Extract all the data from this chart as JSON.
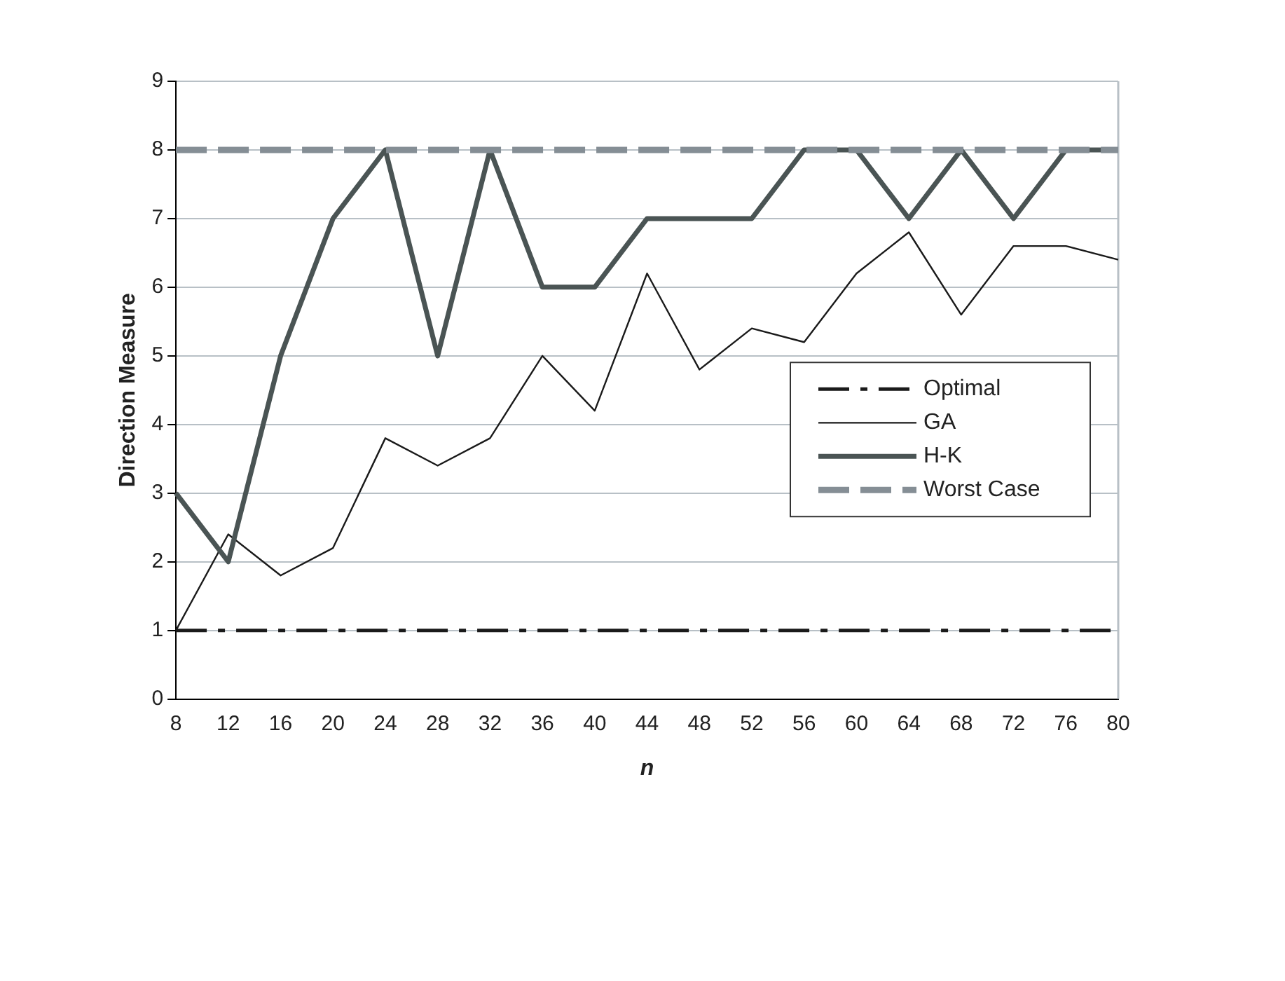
{
  "chart_data": {
    "type": "line",
    "xlabel": "n",
    "ylabel": "Direction Measure",
    "categories": [
      "8",
      "12",
      "16",
      "20",
      "24",
      "28",
      "32",
      "36",
      "40",
      "44",
      "48",
      "52",
      "56",
      "60",
      "64",
      "68",
      "72",
      "76",
      "80"
    ],
    "series": [
      {
        "name": "Optimal",
        "color": "#1a1a1a",
        "line_style": "dashed",
        "values": [
          1,
          1,
          1,
          1,
          1,
          1,
          1,
          1,
          1,
          1,
          1,
          1,
          1,
          1,
          1,
          1,
          1,
          1,
          1
        ]
      },
      {
        "name": "GA",
        "color": "#1a1a1a",
        "line_style": "solid",
        "values": [
          1,
          2.4,
          1.8,
          2.2,
          3.8,
          3.4,
          3.8,
          5,
          4.2,
          6.2,
          4.8,
          5.4,
          5.2,
          6.2,
          6.8,
          5.6,
          6.6,
          6.6,
          6.4
        ]
      },
      {
        "name": "H-K",
        "color": "#4a5454",
        "line_style": "solid",
        "values": [
          3,
          2,
          5,
          7,
          8,
          5,
          8,
          6,
          6,
          7,
          7,
          7,
          8,
          8,
          7,
          8,
          7,
          8,
          8
        ]
      },
      {
        "name": "Worst Case",
        "color": "#858e95",
        "line_style": "dashed",
        "values": [
          8,
          8,
          8,
          8,
          8,
          8,
          8,
          8,
          8,
          8,
          8,
          8,
          8,
          8,
          8,
          8,
          8,
          8,
          8
        ]
      }
    ],
    "ylim": [
      0,
      9
    ],
    "yticks": [
      0,
      1,
      2,
      3,
      4,
      5,
      6,
      7,
      8,
      9
    ],
    "grid": "y",
    "legend": "right",
    "marker": "none"
  }
}
